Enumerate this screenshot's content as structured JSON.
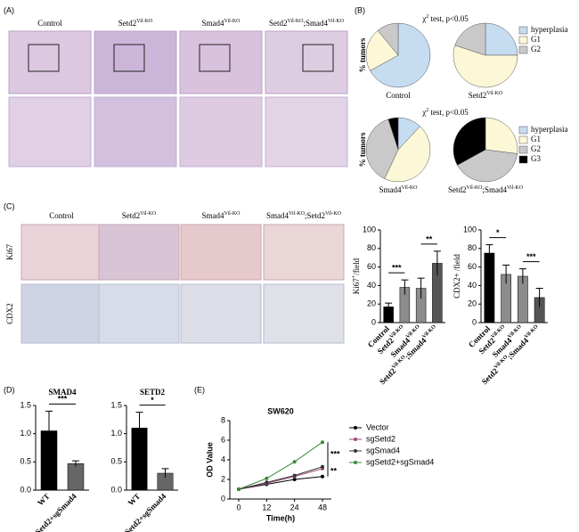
{
  "figure": {
    "panels": [
      "(A)",
      "(B)",
      "(C)",
      "(D)",
      "(E)"
    ],
    "a_columns": [
      [
        "Control"
      ],
      [
        "Setd2",
        "Vil-KO"
      ],
      [
        "Smad4",
        "Vil-KO"
      ],
      [
        "Setd2",
        "Vil-KO",
        ";Smad4",
        "Vil-KO"
      ]
    ],
    "c_columns": [
      [
        "Control"
      ],
      [
        "Setd2",
        "Vil-KO"
      ],
      [
        "Smad4",
        "Vil-KO"
      ],
      [
        "Smad4",
        "Vil-KO",
        ";Setd2",
        "Vil-KO"
      ]
    ],
    "c_rows": [
      "Ki67",
      "CDX2"
    ]
  },
  "chart_data": [
    {
      "type": "pie",
      "title": [
        "χ",
        "2",
        " test, p<0.05"
      ],
      "ylabel": "% tumors",
      "categories": [
        "hyperplasia",
        "G1",
        "G2"
      ],
      "colors": [
        "#c6dcf1",
        "#fcf7d6",
        "#c9c9c9"
      ],
      "pies": [
        {
          "label": [
            "Control"
          ],
          "values": [
            67,
            22,
            11
          ]
        },
        {
          "label": [
            "Setd2",
            "Vil-KO"
          ],
          "values": [
            25,
            55,
            20
          ]
        }
      ]
    },
    {
      "type": "pie",
      "title": [
        "χ",
        "2",
        " test, p<0.05"
      ],
      "ylabel": "% tumors",
      "categories": [
        "hyperplasia",
        "G1",
        "G2",
        "G3"
      ],
      "colors": [
        "#c6dcf1",
        "#fcf7d6",
        "#c9c9c9",
        "#000000"
      ],
      "pies": [
        {
          "label": [
            "Smad4",
            "Vil-KO"
          ],
          "values": [
            12,
            45,
            38,
            5
          ]
        },
        {
          "label": [
            "Setd2",
            "Vil-KO",
            ";Smad4",
            "Vil-KO"
          ],
          "values": [
            0,
            27,
            40,
            33
          ]
        }
      ]
    },
    {
      "type": "bar",
      "ylabel": [
        "Ki67",
        "+",
        "/field"
      ],
      "categories": [
        [
          "Control"
        ],
        [
          "Setd2",
          "Vil-KO"
        ],
        [
          "Smad4",
          "Vil-KO"
        ],
        [
          "Setd2",
          "Vil-KO",
          ";Smad4",
          "Vil-KO"
        ]
      ],
      "values": [
        17,
        38,
        37,
        64
      ],
      "errors": [
        4,
        8,
        11,
        13
      ],
      "colors": [
        "#000000",
        "#8c8c8c",
        "#8c8c8c",
        "#555555"
      ],
      "ylim": [
        0,
        100
      ],
      "yticks": [
        0,
        20,
        40,
        60,
        80,
        100
      ],
      "significance": [
        "***",
        "**"
      ]
    },
    {
      "type": "bar",
      "ylabel": [
        "CDX2+ /field"
      ],
      "categories": [
        [
          "Control"
        ],
        [
          "Setd2",
          "Vil-KO"
        ],
        [
          "Smad4",
          "Vil-KO"
        ],
        [
          "Setd2",
          "Vil-KO",
          ";Smad4",
          "Vil-KO"
        ]
      ],
      "values": [
        75,
        52,
        50,
        27
      ],
      "errors": [
        9,
        10,
        8,
        10
      ],
      "colors": [
        "#000000",
        "#8c8c8c",
        "#8c8c8c",
        "#555555"
      ],
      "ylim": [
        0,
        100
      ],
      "yticks": [
        0,
        20,
        40,
        60,
        80,
        100
      ],
      "significance": [
        "*",
        "***"
      ]
    },
    {
      "type": "bar",
      "title": "SMAD4",
      "categories": [
        [
          "WT"
        ],
        [
          "sgSetd2+sgSmad4"
        ]
      ],
      "values": [
        1.05,
        0.47
      ],
      "errors": [
        0.35,
        0.05
      ],
      "colors": [
        "#000000",
        "#666666"
      ],
      "ylim": [
        0,
        1.5
      ],
      "yticks": [
        {
          "value": 0,
          "label": "0.0"
        },
        {
          "value": 0.5,
          "label": "0.5"
        },
        {
          "value": 1,
          "label": "1.0"
        },
        {
          "value": 1.5,
          "label": "1.5"
        }
      ],
      "significance": [
        "***"
      ]
    },
    {
      "type": "bar",
      "title": "SETD2",
      "categories": [
        [
          "WT"
        ],
        [
          "sgSetd2+sgSmad4"
        ]
      ],
      "values": [
        1.1,
        0.3
      ],
      "errors": [
        0.28,
        0.08
      ],
      "colors": [
        "#000000",
        "#666666"
      ],
      "ylim": [
        0,
        1.5
      ],
      "yticks": [
        {
          "value": 0,
          "label": "0.0"
        },
        {
          "value": 0.5,
          "label": "0.5"
        },
        {
          "value": 1,
          "label": "1.0"
        },
        {
          "value": 1.5,
          "label": "1.5"
        }
      ],
      "significance": [
        "*"
      ]
    },
    {
      "type": "line",
      "title": "SW620",
      "xlabel": "Time(h)",
      "ylabel": "OD Value",
      "categories": [
        "0",
        "12",
        "24",
        "48"
      ],
      "ylim": [
        0,
        8
      ],
      "yticks": [
        0,
        2,
        4,
        6,
        8
      ],
      "series": [
        {
          "name": "Vector",
          "color": "#000000",
          "values": [
            1,
            1.5,
            2,
            2.3
          ]
        },
        {
          "name": "sgSetd2",
          "color": "#9b4a78",
          "values": [
            1,
            1.6,
            2.3,
            3.1
          ]
        },
        {
          "name": "sgSmad4",
          "color": "#333333",
          "values": [
            1,
            1.7,
            2.4,
            3.3
          ]
        },
        {
          "name": "sgSetd2+sgSmad4",
          "color": "#3a8a3a",
          "values": [
            1,
            2.1,
            3.8,
            5.8
          ]
        }
      ],
      "significance": [
        "***",
        "**"
      ]
    }
  ]
}
